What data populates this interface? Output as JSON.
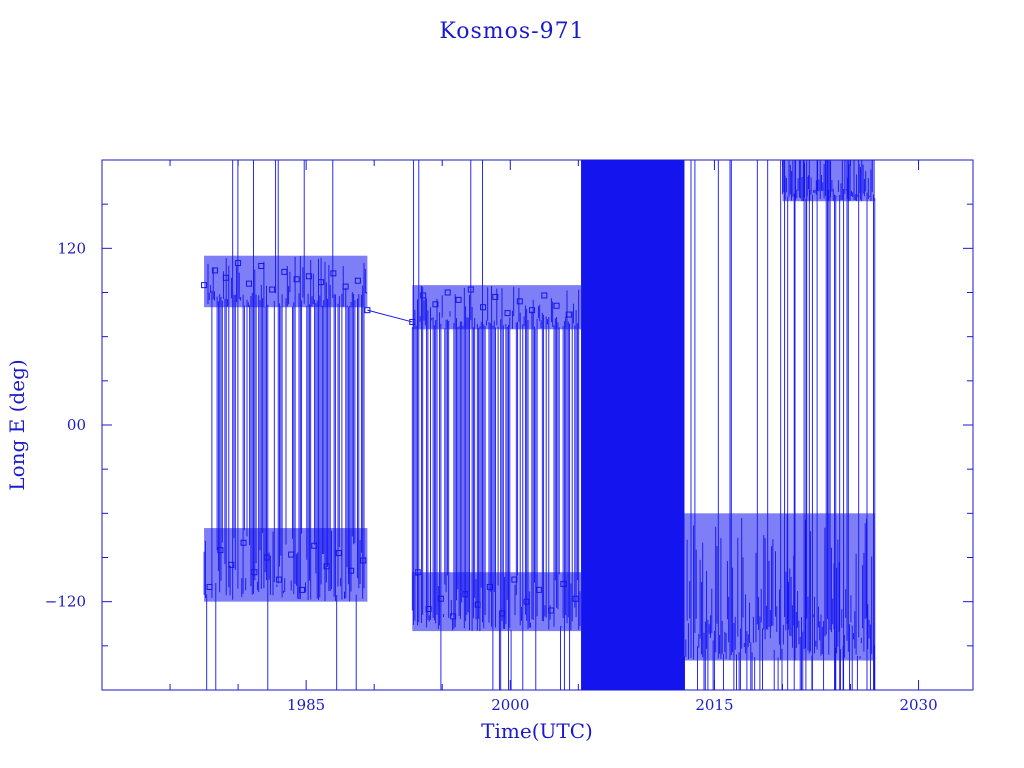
{
  "chart_data": {
    "type": "line",
    "title": "Kosmos-971",
    "xlabel": "Time(UTC)",
    "ylabel": "Long E (deg)",
    "xlim": [
      1970,
      2034
    ],
    "ylim": [
      -180,
      180
    ],
    "x_ticks": [
      1985,
      2000,
      2015,
      2030
    ],
    "x_tick_labels": [
      "1985",
      "2000",
      "2015",
      "2030"
    ],
    "y_ticks": [
      -120,
      0,
      120
    ],
    "y_tick_labels": [
      "−120",
      "00",
      "120"
    ],
    "grid": false,
    "legend": "none",
    "colors": {
      "axes": "#1a1acc",
      "series": "#1414ee"
    },
    "series": [
      {
        "marker": "square",
        "segments": [
          {
            "x_range": [
              1977.5,
              1989.5
            ],
            "note_bands": [
              [
                80,
                115
              ],
              [
                -120,
                -70
              ]
            ]
          },
          {
            "x_range": [
              1992.8,
              2005.2
            ],
            "note_bands": [
              [
                65,
                95
              ],
              [
                -140,
                -100
              ]
            ]
          },
          {
            "x_range": [
              2005.2,
              2012.8
            ],
            "note_bands": [
              [
                -180,
                180
              ]
            ]
          },
          {
            "x_range": [
              2012.8,
              2026.8
            ],
            "note_bands": [
              [
                -160,
                -60
              ]
            ]
          },
          {
            "x_range": [
              2020.0,
              2026.8
            ],
            "note_bands": [
              [
                152,
                180
              ]
            ]
          }
        ],
        "points": [
          [
            1977.5,
            95
          ],
          [
            1977.9,
            -110
          ],
          [
            1978.3,
            105
          ],
          [
            1978.7,
            -85
          ],
          [
            1979.1,
            100
          ],
          [
            1979.5,
            -95
          ],
          [
            1980.0,
            110
          ],
          [
            1980.4,
            -80
          ],
          [
            1980.8,
            96
          ],
          [
            1981.2,
            -100
          ],
          [
            1981.7,
            108
          ],
          [
            1982.1,
            -90
          ],
          [
            1982.5,
            92
          ],
          [
            1983.0,
            -105
          ],
          [
            1983.4,
            104
          ],
          [
            1983.9,
            -88
          ],
          [
            1984.3,
            99
          ],
          [
            1984.7,
            -112
          ],
          [
            1985.2,
            101
          ],
          [
            1985.6,
            -82
          ],
          [
            1986.1,
            97
          ],
          [
            1986.5,
            -96
          ],
          [
            1987.0,
            103
          ],
          [
            1987.4,
            -87
          ],
          [
            1987.9,
            94
          ],
          [
            1988.3,
            -99
          ],
          [
            1988.8,
            98
          ],
          [
            1989.2,
            -92
          ],
          [
            1989.5,
            78
          ],
          [
            1992.8,
            70
          ],
          [
            1993.2,
            -100
          ],
          [
            1993.6,
            88
          ],
          [
            1994.0,
            -125
          ],
          [
            1994.5,
            82
          ],
          [
            1994.9,
            -118
          ],
          [
            1995.4,
            90
          ],
          [
            1995.8,
            -130
          ],
          [
            1996.2,
            85
          ],
          [
            1996.7,
            -115
          ],
          [
            1997.1,
            92
          ],
          [
            1997.6,
            -122
          ],
          [
            1998.0,
            80
          ],
          [
            1998.5,
            -110
          ],
          [
            1998.9,
            87
          ],
          [
            1999.4,
            -128
          ],
          [
            1999.8,
            76
          ],
          [
            2000.3,
            -105
          ],
          [
            2000.7,
            84
          ],
          [
            2001.2,
            -120
          ],
          [
            2001.6,
            78
          ],
          [
            2002.1,
            -112
          ],
          [
            2002.5,
            88
          ],
          [
            2003.0,
            -126
          ],
          [
            2003.4,
            81
          ],
          [
            2003.9,
            -108
          ],
          [
            2004.3,
            75
          ],
          [
            2004.8,
            -118
          ]
        ]
      }
    ]
  }
}
